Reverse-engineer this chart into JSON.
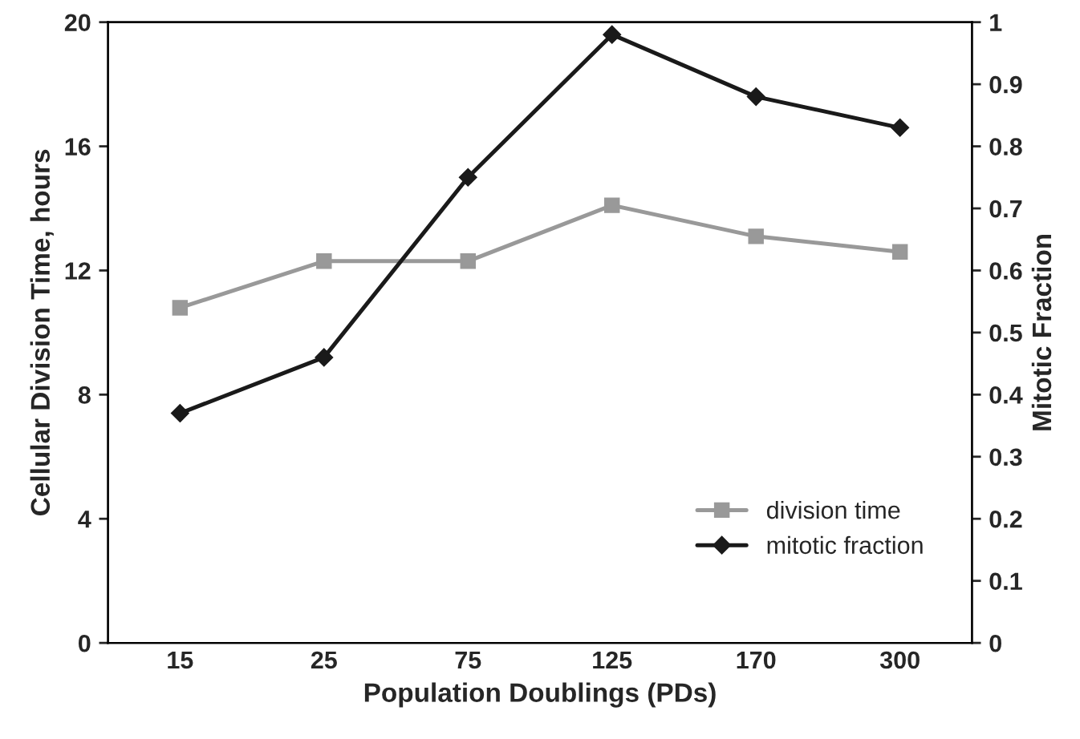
{
  "chart_data": {
    "type": "line",
    "xlabel": "Population Doublings (PDs)",
    "ylabel": "Cellular Division Time, hours",
    "y2label": "Mitotic Fraction",
    "categories": [
      "15",
      "25",
      "75",
      "125",
      "170",
      "300"
    ],
    "series": [
      {
        "name": "division time",
        "color": "#999999",
        "marker": "square",
        "values": [
          10.8,
          12.3,
          12.3,
          14.1,
          13.1,
          12.6
        ]
      },
      {
        "name": "mitotic fraction",
        "color": "#1a1a1a",
        "marker": "diamond",
        "axis": "y2",
        "values": [
          0.37,
          0.46,
          0.75,
          0.98,
          0.88,
          0.83
        ]
      }
    ],
    "ylim": [
      0,
      20
    ],
    "yticks": [
      0,
      4,
      8,
      12,
      16,
      20
    ],
    "y2lim": [
      0,
      1
    ],
    "y2ticks": [
      0,
      0.1,
      0.2,
      0.3,
      0.4,
      0.5,
      0.6,
      0.7,
      0.8,
      0.9,
      1
    ],
    "grid": false,
    "legend": "bottom right"
  }
}
